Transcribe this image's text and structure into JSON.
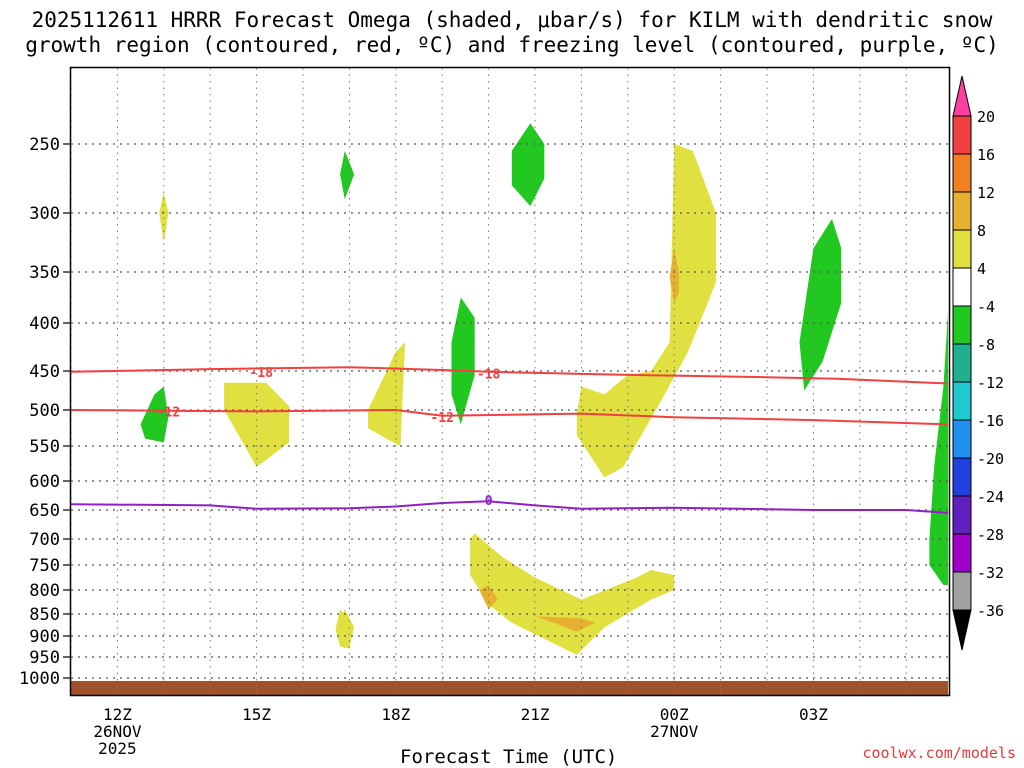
{
  "chart_data": {
    "type": "contour",
    "title_line1": "2025112611 HRRR Forecast Omega (shaded, μbar/s) for KILM with dendritic snow",
    "title_line2": "growth region (contoured, red, ºC) and freezing level (contoured, purple, ºC)",
    "xlabel": "Forecast Time (UTC)",
    "credit": "coolwx.com/models",
    "x_ticks": [
      {
        "hour": 12,
        "label": "12Z",
        "sub1": "26NOV",
        "sub2": "2025"
      },
      {
        "hour": 15,
        "label": "15Z",
        "sub1": "",
        "sub2": ""
      },
      {
        "hour": 18,
        "label": "18Z",
        "sub1": "",
        "sub2": ""
      },
      {
        "hour": 21,
        "label": "21Z",
        "sub1": "",
        "sub2": ""
      },
      {
        "hour": 24,
        "label": "00Z",
        "sub1": "27NOV",
        "sub2": ""
      },
      {
        "hour": 27,
        "label": "03Z",
        "sub1": "",
        "sub2": ""
      }
    ],
    "x_range": [
      11,
      29.9
    ],
    "y_ticks": [
      "250",
      "300",
      "350",
      "400",
      "450",
      "500",
      "550",
      "600",
      "650",
      "700",
      "750",
      "800",
      "850",
      "900",
      "950",
      "1000"
    ],
    "y_range": [
      200,
      1020
    ],
    "colorbar": {
      "labels": [
        "20",
        "16",
        "12",
        "8",
        "4",
        "-4",
        "-8",
        "-12",
        "-16",
        "-20",
        "-24",
        "-28",
        "-32",
        "-36"
      ],
      "colors": [
        "#ff40a0",
        "#f04040",
        "#f08020",
        "#e8b030",
        "#e0e040",
        "#ffffff",
        "#20c820",
        "#20b090",
        "#20c8d0",
        "#2090f0",
        "#2040e0",
        "#6020c0",
        "#a000c8",
        "#a0a0a0",
        "#000000"
      ]
    },
    "contours": [
      {
        "name": "dgz-minus18",
        "label": "-18",
        "color": "#f04040",
        "points": [
          [
            11,
            451
          ],
          [
            14,
            448
          ],
          [
            17,
            446
          ],
          [
            19,
            449
          ],
          [
            20,
            451
          ],
          [
            23,
            455
          ],
          [
            26,
            458
          ],
          [
            27.5,
            460
          ],
          [
            29.9,
            466
          ]
        ],
        "labels_at": [
          [
            15.1,
            451
          ],
          [
            20.0,
            453
          ]
        ]
      },
      {
        "name": "dgz-minus12",
        "label": "-12",
        "color": "#f04040",
        "points": [
          [
            11,
            500
          ],
          [
            13,
            501
          ],
          [
            15,
            502
          ],
          [
            18,
            500
          ],
          [
            19,
            508
          ],
          [
            22,
            505
          ],
          [
            24,
            510
          ],
          [
            27,
            514
          ],
          [
            29.9,
            520
          ]
        ],
        "labels_at": [
          [
            13.1,
            502
          ],
          [
            19.0,
            510
          ]
        ]
      },
      {
        "name": "freezing-level",
        "label": "0",
        "color": "#9020c0",
        "points": [
          [
            11,
            640
          ],
          [
            14,
            642
          ],
          [
            15,
            648
          ],
          [
            17,
            647
          ],
          [
            18,
            644
          ],
          [
            19,
            638
          ],
          [
            20,
            635
          ],
          [
            21,
            642
          ],
          [
            22,
            648
          ],
          [
            24,
            646
          ],
          [
            27,
            650
          ],
          [
            29,
            650
          ],
          [
            29.9,
            655
          ]
        ],
        "labels_at": [
          [
            20.0,
            633
          ]
        ]
      }
    ],
    "omega_regions": [
      {
        "name": "yellow-1",
        "color": "#e0e040",
        "points": [
          [
            12.9,
            300
          ],
          [
            13.0,
            285
          ],
          [
            13.1,
            300
          ],
          [
            13.0,
            325
          ]
        ]
      },
      {
        "name": "yellow-2",
        "color": "#e0e040",
        "points": [
          [
            14.3,
            465
          ],
          [
            15.2,
            465
          ],
          [
            15.7,
            495
          ],
          [
            15.7,
            545
          ],
          [
            15.0,
            580
          ],
          [
            14.7,
            545
          ],
          [
            14.3,
            500
          ]
        ]
      },
      {
        "name": "yellow-3",
        "color": "#e0e040",
        "points": [
          [
            17.4,
            500
          ],
          [
            18.0,
            430
          ],
          [
            18.2,
            420
          ],
          [
            18.1,
            550
          ],
          [
            17.8,
            540
          ],
          [
            17.4,
            525
          ]
        ]
      },
      {
        "name": "yellow-4",
        "color": "#e0e040",
        "points": [
          [
            19.6,
            700
          ],
          [
            19.7,
            690
          ],
          [
            20.3,
            735
          ],
          [
            21.0,
            775
          ],
          [
            22.0,
            820
          ],
          [
            23.2,
            775
          ],
          [
            23.5,
            760
          ],
          [
            24.0,
            770
          ],
          [
            24.0,
            800
          ],
          [
            23.5,
            820
          ],
          [
            22.5,
            880
          ],
          [
            21.9,
            945
          ],
          [
            20.5,
            870
          ],
          [
            20.0,
            830
          ],
          [
            19.6,
            770
          ]
        ]
      },
      {
        "name": "yellow-5",
        "color": "#e0e040",
        "points": [
          [
            16.7,
            885
          ],
          [
            16.9,
            840
          ],
          [
            17.1,
            880
          ],
          [
            17.0,
            930
          ],
          [
            16.8,
            925
          ]
        ]
      },
      {
        "name": "yellow-6",
        "color": "#e0e040",
        "points": [
          [
            21.9,
            505
          ],
          [
            22.0,
            470
          ],
          [
            22.5,
            480
          ],
          [
            23.0,
            455
          ],
          [
            23.5,
            450
          ],
          [
            23.9,
            420
          ],
          [
            24.0,
            250
          ],
          [
            24.4,
            255
          ],
          [
            24.9,
            300
          ],
          [
            24.9,
            360
          ],
          [
            24.3,
            430
          ],
          [
            23.7,
            490
          ],
          [
            22.9,
            580
          ],
          [
            22.5,
            595
          ],
          [
            21.9,
            535
          ]
        ]
      },
      {
        "name": "yellow-7",
        "color": "#e0e040",
        "points": [
          [
            16.7,
            885
          ],
          [
            16.8,
            840
          ],
          [
            17.1,
            880
          ],
          [
            16.9,
            930
          ]
        ]
      },
      {
        "name": "orange-1",
        "color": "#e8b030",
        "points": [
          [
            24.0,
            330
          ],
          [
            24.1,
            350
          ],
          [
            24.1,
            370
          ],
          [
            24.0,
            380
          ],
          [
            23.9,
            355
          ]
        ]
      },
      {
        "name": "orange-2",
        "color": "#e8b030",
        "points": [
          [
            19.8,
            800
          ],
          [
            20.0,
            790
          ],
          [
            20.2,
            820
          ],
          [
            20.0,
            840
          ]
        ]
      },
      {
        "name": "orange-3",
        "color": "#e8b030",
        "points": [
          [
            21.0,
            855
          ],
          [
            22.0,
            860
          ],
          [
            22.3,
            870
          ],
          [
            21.9,
            890
          ],
          [
            21.4,
            870
          ]
        ]
      },
      {
        "name": "green-1",
        "color": "#20c820",
        "points": [
          [
            12.5,
            520
          ],
          [
            12.8,
            480
          ],
          [
            13.0,
            470
          ],
          [
            13.1,
            510
          ],
          [
            13.0,
            545
          ],
          [
            12.6,
            540
          ]
        ]
      },
      {
        "name": "green-2",
        "color": "#20c820",
        "points": [
          [
            16.8,
            272
          ],
          [
            16.9,
            255
          ],
          [
            17.1,
            272
          ],
          [
            16.9,
            290
          ]
        ]
      },
      {
        "name": "green-3",
        "color": "#20c820",
        "points": [
          [
            19.2,
            420
          ],
          [
            19.4,
            375
          ],
          [
            19.7,
            395
          ],
          [
            19.7,
            455
          ],
          [
            19.4,
            520
          ],
          [
            19.2,
            480
          ]
        ]
      },
      {
        "name": "green-4",
        "color": "#20c820",
        "points": [
          [
            20.5,
            255
          ],
          [
            20.9,
            235
          ],
          [
            21.2,
            250
          ],
          [
            21.2,
            275
          ],
          [
            20.9,
            295
          ],
          [
            20.5,
            280
          ]
        ]
      },
      {
        "name": "green-5",
        "color": "#20c820",
        "points": [
          [
            26.7,
            420
          ],
          [
            27.0,
            330
          ],
          [
            27.4,
            305
          ],
          [
            27.6,
            330
          ],
          [
            27.6,
            380
          ],
          [
            27.2,
            440
          ],
          [
            26.8,
            475
          ]
        ]
      },
      {
        "name": "green-6",
        "color": "#20c820",
        "points": [
          [
            29.5,
            700
          ],
          [
            29.6,
            580
          ],
          [
            29.8,
            470
          ],
          [
            29.9,
            390
          ],
          [
            29.9,
            790
          ],
          [
            29.8,
            790
          ],
          [
            29.5,
            750
          ]
        ]
      }
    ]
  }
}
